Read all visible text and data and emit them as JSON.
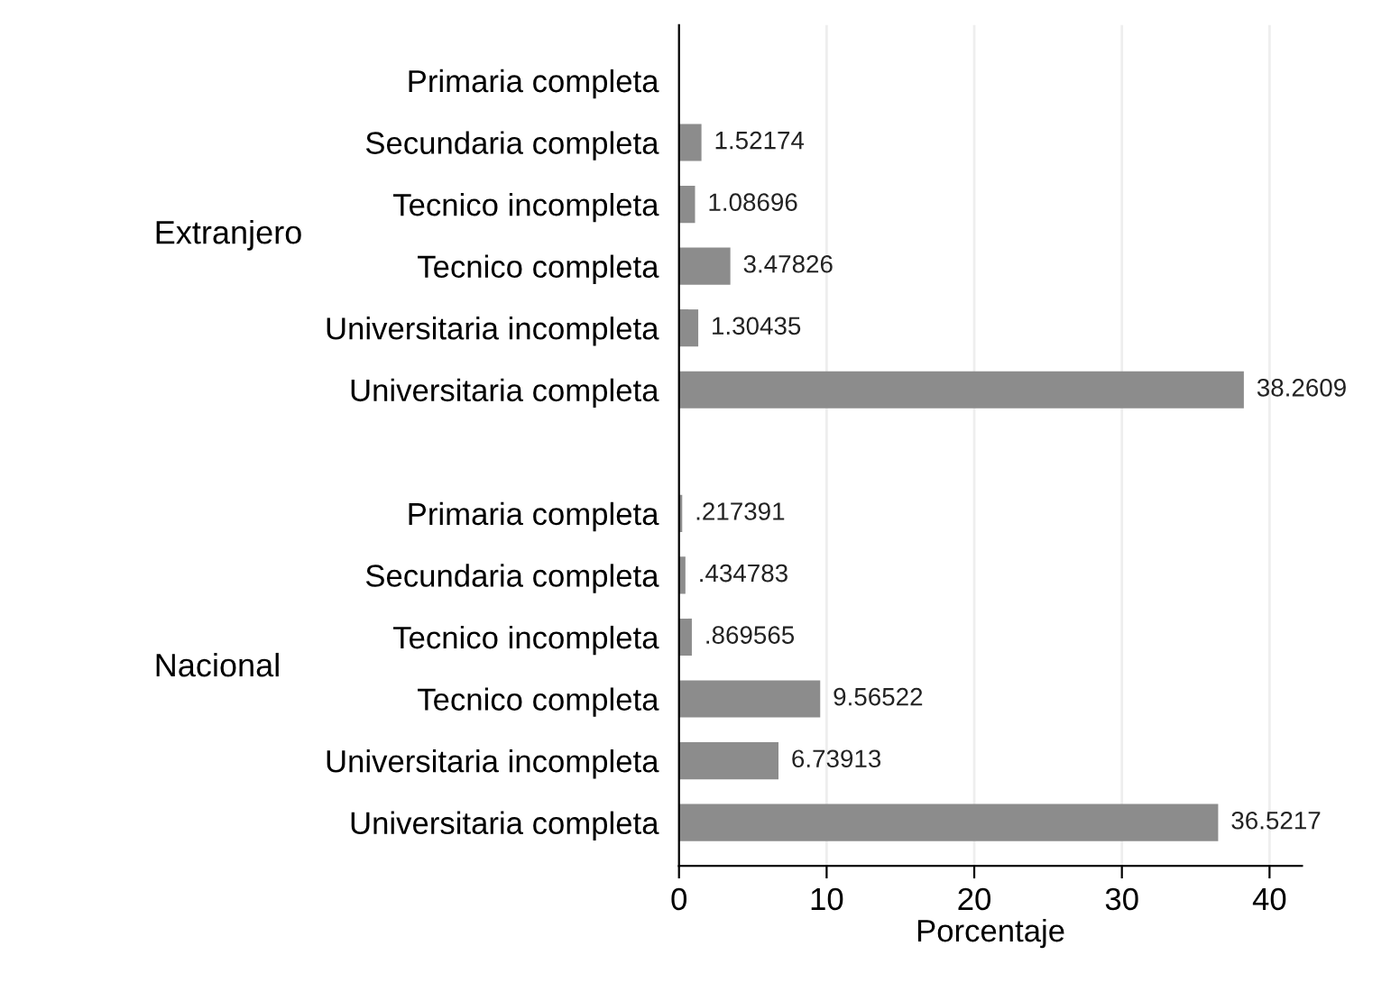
{
  "chart_data": {
    "type": "bar",
    "orientation": "horizontal",
    "xlabel": "Porcentaje",
    "categories": [
      "Primaria completa",
      "Secundaria completa",
      "Tecnico incompleta",
      "Tecnico completa",
      "Universitaria incompleta",
      "Universitaria completa",
      null,
      "Primaria completa",
      "Secundaria completa",
      "Tecnico incompleta",
      "Tecnico completa",
      "Universitaria incompleta",
      "Universitaria completa"
    ],
    "values": [
      null,
      1.52174,
      1.08696,
      3.47826,
      1.30435,
      38.2609,
      null,
      0.217391,
      0.434783,
      0.869565,
      9.56522,
      6.73913,
      36.5217
    ],
    "value_labels": [
      null,
      "1.52174",
      "1.08696",
      "3.47826",
      "1.30435",
      "38.2609",
      null,
      ".217391",
      ".434783",
      ".869565",
      "9.56522",
      "6.73913",
      "36.5217"
    ],
    "color": "#8c8c8c",
    "annotations": [
      "Extranjero",
      "Nacional"
    ],
    "xlim": [
      0,
      42.2
    ],
    "xticks": [
      0,
      10,
      20,
      30,
      40
    ],
    "grid": "x"
  }
}
